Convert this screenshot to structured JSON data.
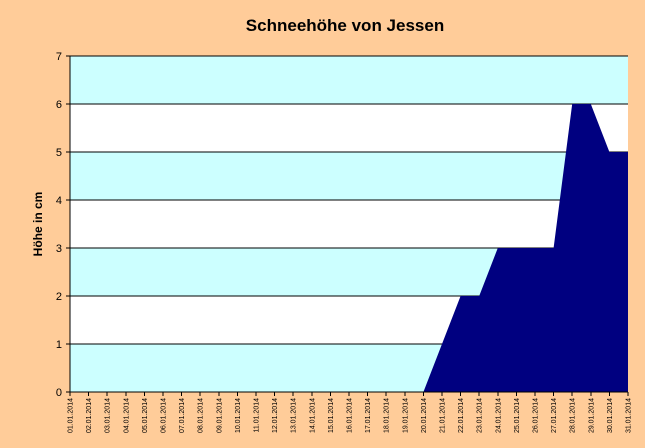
{
  "chart_data": {
    "type": "area",
    "title": "Schneehöhe von Jessen",
    "xlabel": "",
    "ylabel": "Höhe in cm",
    "ylim": [
      0,
      7
    ],
    "yticks": [
      0,
      1,
      2,
      3,
      4,
      5,
      6,
      7
    ],
    "grid": true,
    "legend": "none",
    "categories": [
      "01.01.2014",
      "02.01.2014",
      "03.01.2014",
      "04.01.2014",
      "05.01.2014",
      "06.01.2014",
      "07.01.2014",
      "08.01.2014",
      "09.01.2014",
      "10.01.2014",
      "11.01.2014",
      "12.01.2014",
      "13.01.2014",
      "14.01.2014",
      "15.01.2014",
      "16.01.2014",
      "17.01.2014",
      "18.01.2014",
      "19.01.2014",
      "20.01.2014",
      "21.01.2014",
      "22.01.2014",
      "23.01.2014",
      "24.01.2014",
      "25.01.2014",
      "26.01.2014",
      "27.01.2014",
      "28.01.2014",
      "29.01.2014",
      "30.01.2014",
      "31.01.2014"
    ],
    "series": [
      {
        "values": [
          0,
          0,
          0,
          0,
          0,
          0,
          0,
          0,
          0,
          0,
          0,
          0,
          0,
          0,
          0,
          0,
          0,
          0,
          0,
          0,
          1,
          2,
          2,
          3,
          3,
          3,
          3,
          6,
          6,
          5,
          5
        ]
      }
    ],
    "colors": {
      "background": "#ffcc99",
      "band_light": "#ccffff",
      "band_white": "#ffffff",
      "area_fill": "#000080",
      "gridline": "#000000"
    }
  }
}
